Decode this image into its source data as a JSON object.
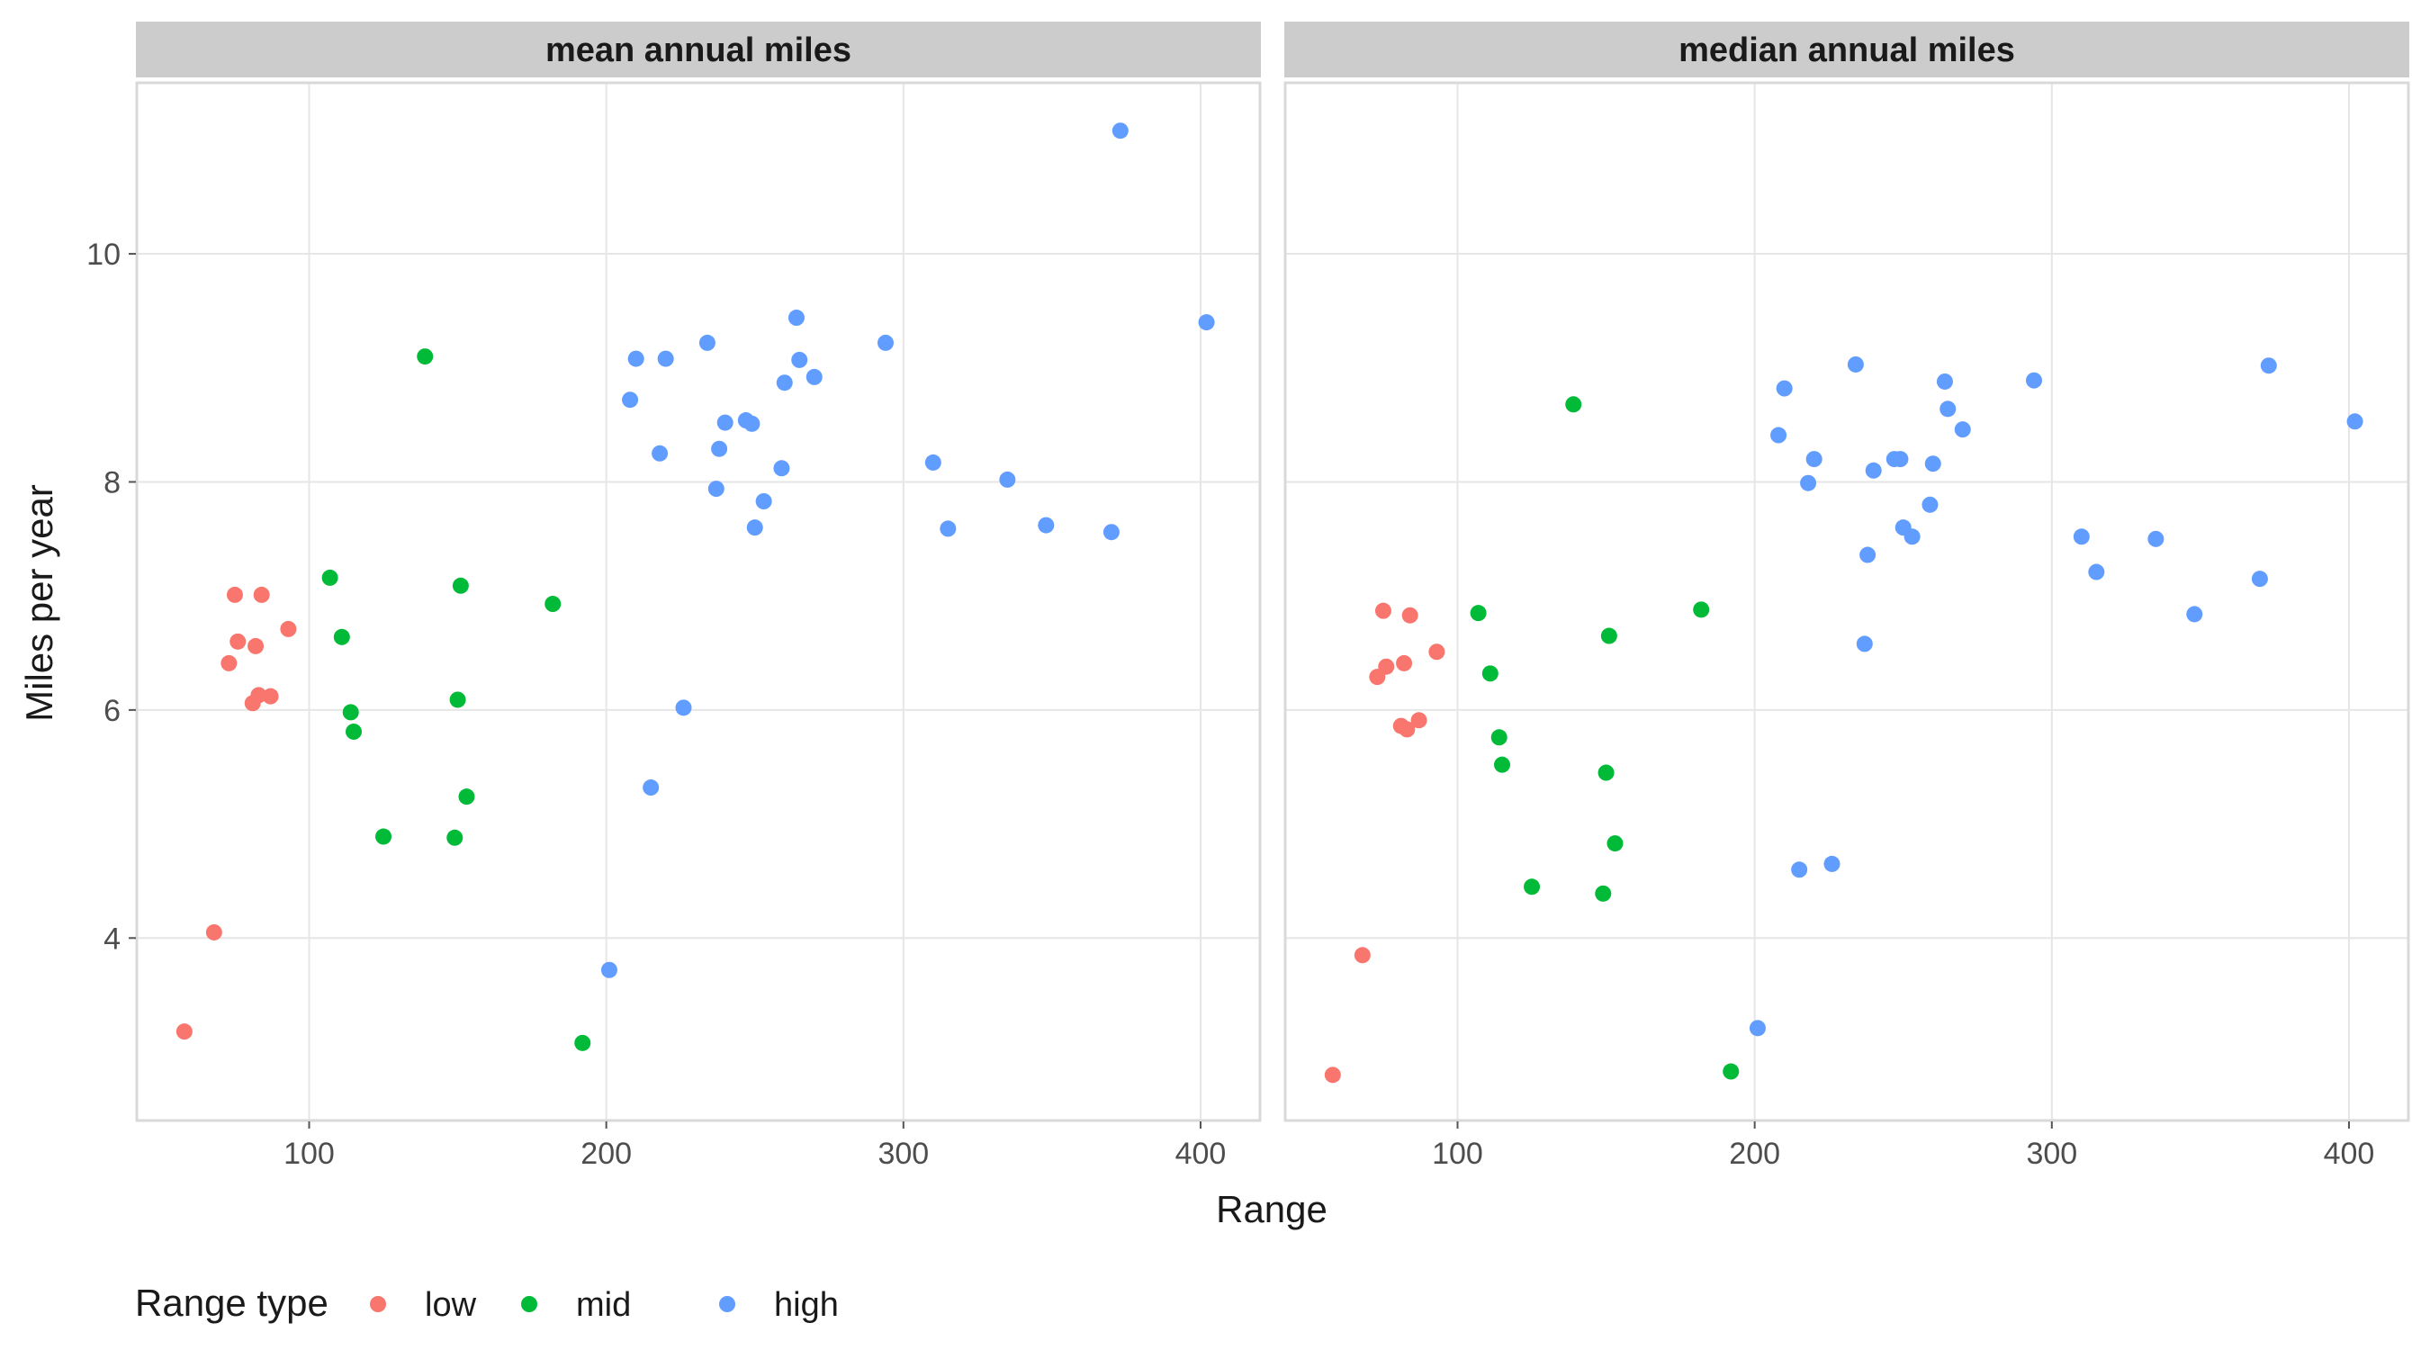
{
  "chart_data": {
    "type": "scatter",
    "xlabel": "Range",
    "ylabel": "Miles per year",
    "xlim": [
      42,
      420
    ],
    "ylim": [
      2.4,
      11.5
    ],
    "x_ticks": [
      100,
      200,
      300,
      400
    ],
    "y_ticks": [
      4,
      6,
      8,
      10
    ],
    "grid": true,
    "legend": {
      "title": "Range type",
      "position": "bottom-left",
      "entries": [
        {
          "name": "low",
          "color": "#F8766D"
        },
        {
          "name": "mid",
          "color": "#00BA38"
        },
        {
          "name": "high",
          "color": "#619CFF"
        }
      ]
    },
    "panels": [
      {
        "title": "mean annual miles",
        "series": [
          {
            "name": "low",
            "color": "#F8766D",
            "points": [
              [
                58,
                3.18
              ],
              [
                68,
                4.05
              ],
              [
                73,
                6.41
              ],
              [
                75,
                7.01
              ],
              [
                76,
                6.6
              ],
              [
                81,
                6.06
              ],
              [
                82,
                6.56
              ],
              [
                83,
                6.13
              ],
              [
                84,
                7.01
              ],
              [
                87,
                6.12
              ],
              [
                93,
                6.71
              ]
            ]
          },
          {
            "name": "mid",
            "color": "#00BA38",
            "points": [
              [
                107,
                7.16
              ],
              [
                111,
                6.64
              ],
              [
                114,
                5.98
              ],
              [
                115,
                5.81
              ],
              [
                125,
                4.89
              ],
              [
                139,
                9.1
              ],
              [
                149,
                4.88
              ],
              [
                150,
                6.09
              ],
              [
                151,
                7.09
              ],
              [
                153,
                5.24
              ],
              [
                182,
                6.93
              ],
              [
                192,
                3.08
              ]
            ]
          },
          {
            "name": "high",
            "color": "#619CFF",
            "points": [
              [
                201,
                3.72
              ],
              [
                208,
                8.72
              ],
              [
                210,
                9.08
              ],
              [
                215,
                5.32
              ],
              [
                218,
                8.25
              ],
              [
                220,
                9.08
              ],
              [
                226,
                6.02
              ],
              [
                234,
                9.22
              ],
              [
                237,
                7.94
              ],
              [
                238,
                8.29
              ],
              [
                240,
                8.52
              ],
              [
                247,
                8.54
              ],
              [
                249,
                8.51
              ],
              [
                250,
                7.6
              ],
              [
                253,
                7.83
              ],
              [
                259,
                8.12
              ],
              [
                260,
                8.87
              ],
              [
                264,
                9.44
              ],
              [
                265,
                9.07
              ],
              [
                270,
                8.92
              ],
              [
                294,
                9.22
              ],
              [
                310,
                8.17
              ],
              [
                315,
                7.59
              ],
              [
                335,
                8.02
              ],
              [
                348,
                7.62
              ],
              [
                370,
                7.56
              ],
              [
                373,
                11.08
              ],
              [
                402,
                9.4
              ]
            ]
          }
        ]
      },
      {
        "title": "median annual miles",
        "series": [
          {
            "name": "low",
            "color": "#F8766D",
            "points": [
              [
                58,
                2.8
              ],
              [
                68,
                3.85
              ],
              [
                73,
                6.29
              ],
              [
                75,
                6.87
              ],
              [
                76,
                6.38
              ],
              [
                81,
                5.86
              ],
              [
                82,
                6.41
              ],
              [
                83,
                5.83
              ],
              [
                84,
                6.83
              ],
              [
                87,
                5.91
              ],
              [
                93,
                6.51
              ]
            ]
          },
          {
            "name": "mid",
            "color": "#00BA38",
            "points": [
              [
                107,
                6.85
              ],
              [
                111,
                6.32
              ],
              [
                114,
                5.76
              ],
              [
                115,
                5.52
              ],
              [
                125,
                4.45
              ],
              [
                139,
                8.68
              ],
              [
                149,
                4.39
              ],
              [
                150,
                5.45
              ],
              [
                151,
                6.65
              ],
              [
                153,
                4.83
              ],
              [
                182,
                6.88
              ],
              [
                192,
                2.83
              ]
            ]
          },
          {
            "name": "high",
            "color": "#619CFF",
            "points": [
              [
                201,
                3.21
              ],
              [
                208,
                8.41
              ],
              [
                210,
                8.82
              ],
              [
                215,
                4.6
              ],
              [
                218,
                7.99
              ],
              [
                220,
                8.2
              ],
              [
                226,
                4.65
              ],
              [
                234,
                9.03
              ],
              [
                237,
                6.58
              ],
              [
                238,
                7.36
              ],
              [
                240,
                8.1
              ],
              [
                247,
                8.2
              ],
              [
                249,
                8.2
              ],
              [
                250,
                7.6
              ],
              [
                253,
                7.52
              ],
              [
                259,
                7.8
              ],
              [
                260,
                8.16
              ],
              [
                264,
                8.88
              ],
              [
                265,
                8.64
              ],
              [
                270,
                8.46
              ],
              [
                294,
                8.89
              ],
              [
                310,
                7.52
              ],
              [
                315,
                7.21
              ],
              [
                335,
                7.5
              ],
              [
                348,
                6.84
              ],
              [
                370,
                7.15
              ],
              [
                373,
                9.02
              ],
              [
                402,
                8.53
              ]
            ]
          }
        ]
      }
    ]
  }
}
